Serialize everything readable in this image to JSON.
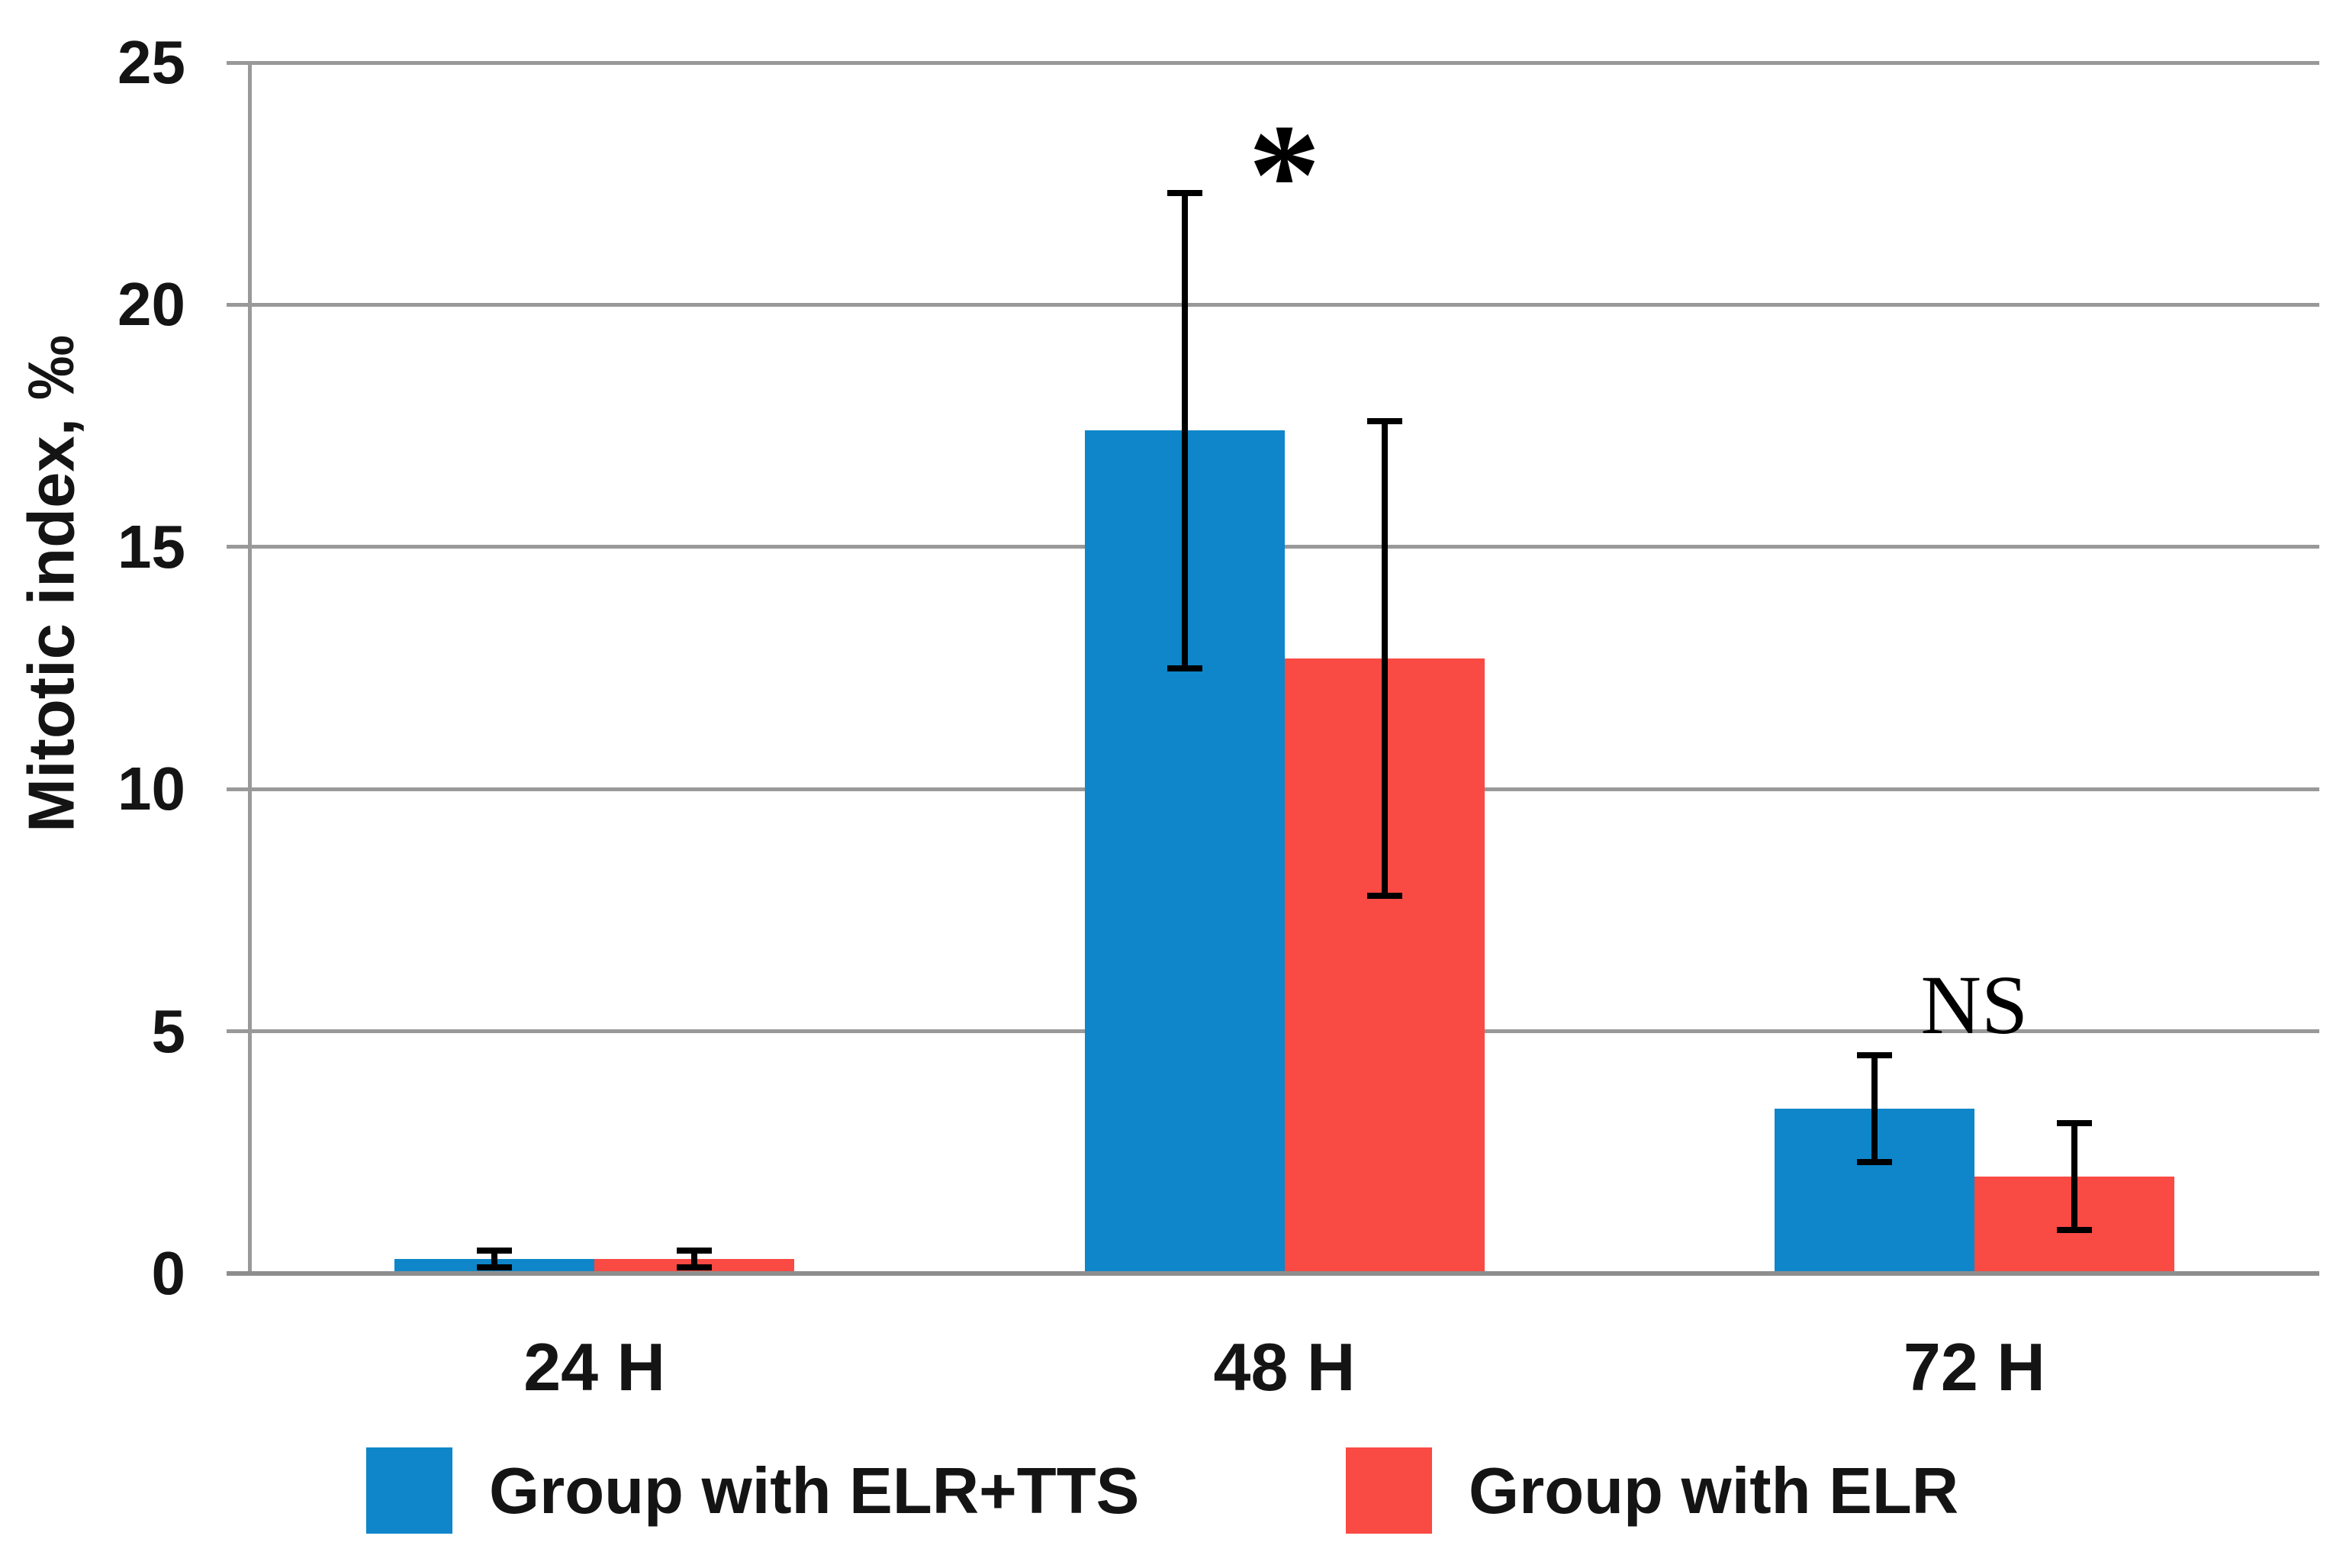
{
  "chart_data": {
    "type": "bar",
    "title": "",
    "xlabel": "",
    "ylabel": "Mitotic index, ‰",
    "categories": [
      "24 H",
      "48 H",
      "72 H"
    ],
    "series": [
      {
        "name": "Group with ELR+TTS",
        "color": "#0E86C9",
        "values": [
          0.3,
          17.4,
          3.4
        ],
        "errors": [
          0.17,
          4.9,
          1.1
        ]
      },
      {
        "name": "Group with ELR",
        "color": "#FA4A44",
        "values": [
          0.3,
          12.7,
          2.0
        ],
        "errors": [
          0.17,
          4.9,
          1.1
        ]
      }
    ],
    "ylim": [
      0,
      25
    ],
    "yticks": [
      0,
      5,
      10,
      15,
      20,
      25
    ],
    "grid": "horizontal",
    "legend_position": "bottom",
    "annotations": [
      {
        "text": "*",
        "category": "48 H",
        "y": 22.6
      },
      {
        "text": "NS",
        "category": "72 H",
        "y": 5.5
      }
    ]
  },
  "colors": {
    "grid": "#999999",
    "baseline": "#8E8E8E",
    "axis": "#999999",
    "text": "#141414",
    "error_bar": "#000000",
    "background": "#FFFFFF"
  }
}
